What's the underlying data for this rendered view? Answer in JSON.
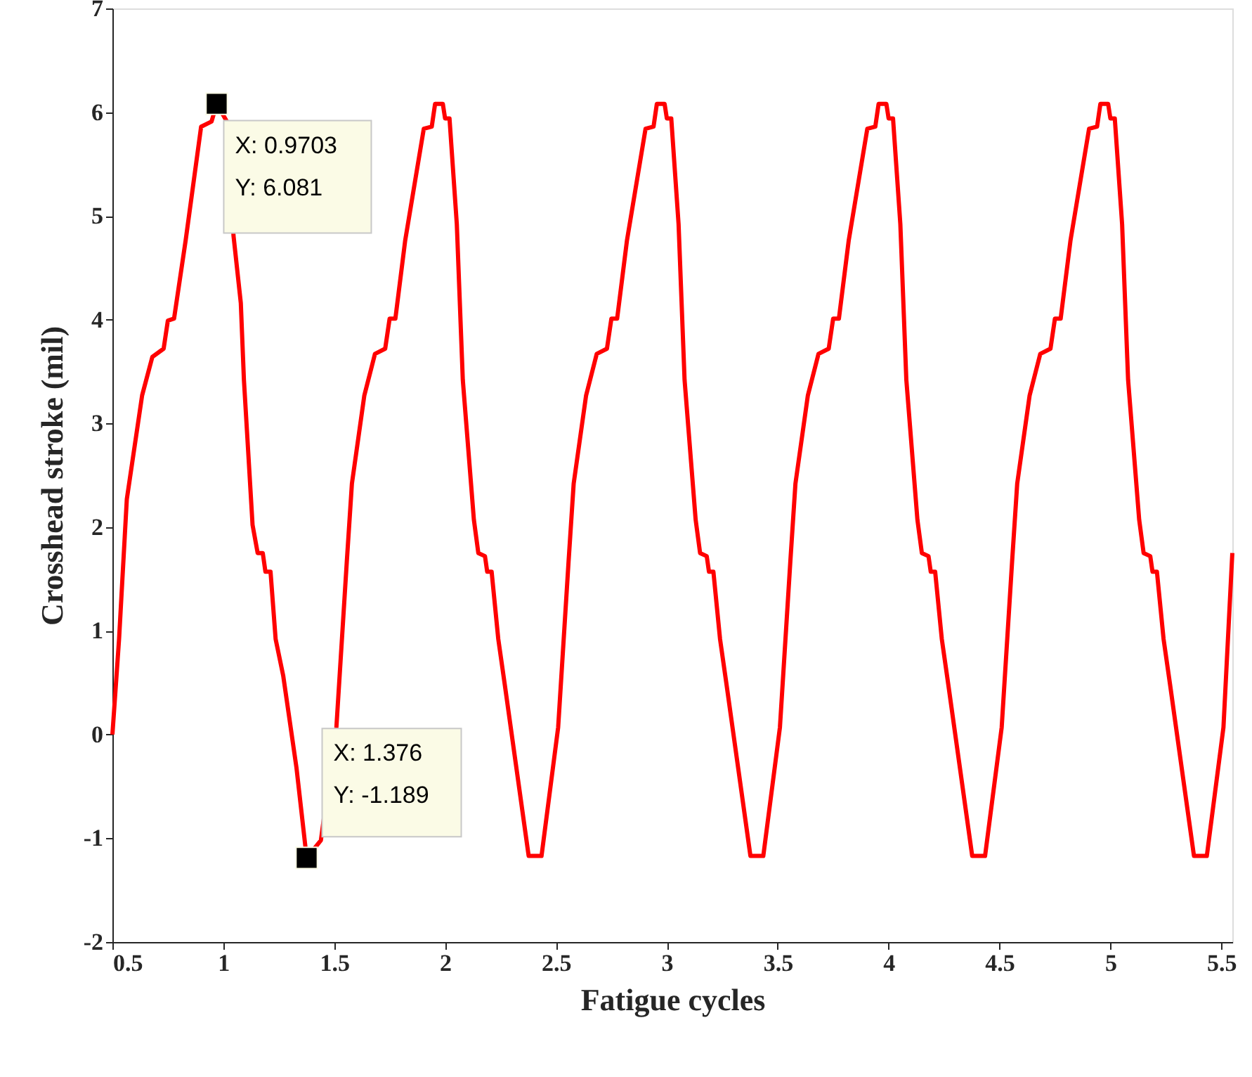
{
  "chart_data": {
    "type": "line",
    "xlabel": "Fatigue cycles",
    "ylabel": "Crosshead stroke (mil)",
    "xlim": [
      0.5,
      5.55
    ],
    "xticks": [
      0.5,
      1,
      1.5,
      2,
      2.5,
      3,
      3.5,
      4,
      4.5,
      5,
      5.5
    ],
    "ylim": [
      -2,
      7
    ],
    "yticks": [
      -2,
      -1,
      0,
      1,
      2,
      3,
      4,
      5,
      6,
      7
    ],
    "grid": false,
    "marker": "none",
    "line_style": "solid",
    "series": [
      {
        "color": "#ff0000",
        "x": [
          0.5,
          0.53,
          0.565,
          0.634,
          0.68,
          0.731,
          0.75,
          0.778,
          0.83,
          0.9,
          0.947,
          0.9703,
          1.016,
          1.046,
          1.079,
          1.093,
          1.132,
          1.155,
          1.178,
          1.19,
          1.213,
          1.236,
          1.27,
          1.33,
          1.376,
          1.44,
          1.51,
          1.557,
          1.58,
          1.636,
          1.684,
          1.73,
          1.75,
          1.776,
          1.82,
          1.904,
          1.94,
          1.955,
          1.99,
          2.0,
          2.02,
          2.053,
          2.08,
          2.13,
          2.15,
          2.18,
          2.19,
          2.21,
          2.24,
          2.27,
          2.377,
          2.435,
          2.51,
          2.557,
          2.58,
          2.636,
          2.684,
          2.73,
          2.75,
          2.776,
          2.82,
          2.904,
          2.94,
          2.955,
          2.99,
          3.0,
          3.02,
          3.053,
          3.08,
          3.13,
          3.15,
          3.18,
          3.19,
          3.21,
          3.24,
          3.27,
          3.377,
          3.435,
          3.51,
          3.557,
          3.58,
          3.636,
          3.684,
          3.73,
          3.75,
          3.776,
          3.82,
          3.904,
          3.94,
          3.955,
          3.99,
          4.0,
          4.02,
          4.053,
          4.08,
          4.13,
          4.15,
          4.18,
          4.19,
          4.21,
          4.24,
          4.27,
          4.377,
          4.435,
          4.51,
          4.557,
          4.58,
          4.636,
          4.684,
          4.73,
          4.75,
          4.776,
          4.82,
          4.904,
          4.94,
          4.955,
          4.99,
          5.0,
          5.02,
          5.053,
          5.08,
          5.13,
          5.15,
          5.18,
          5.19,
          5.21,
          5.24,
          5.27,
          5.377,
          5.435,
          5.51,
          5.55
        ],
        "values": [
          0,
          0.92,
          2.27,
          3.27,
          3.64,
          3.72,
          3.99,
          4.01,
          4.76,
          5.86,
          5.91,
          6.08,
          5.91,
          4.81,
          4.16,
          3.42,
          2.02,
          1.75,
          1.75,
          1.57,
          1.57,
          0.92,
          0.57,
          -0.32,
          -1.19,
          -1.02,
          0.07,
          1.67,
          2.42,
          3.27,
          3.67,
          3.72,
          4.01,
          4.01,
          4.76,
          5.84,
          5.86,
          6.08,
          6.08,
          5.94,
          5.94,
          4.92,
          3.42,
          2.07,
          1.75,
          1.72,
          1.57,
          1.57,
          0.92,
          0.47,
          -1.17,
          -1.17,
          0.07,
          1.67,
          2.42,
          3.27,
          3.67,
          3.72,
          4.01,
          4.01,
          4.76,
          5.84,
          5.86,
          6.08,
          6.08,
          5.94,
          5.94,
          4.92,
          3.42,
          2.07,
          1.75,
          1.72,
          1.57,
          1.57,
          0.92,
          0.47,
          -1.17,
          -1.17,
          0.07,
          1.67,
          2.42,
          3.27,
          3.67,
          3.72,
          4.01,
          4.01,
          4.76,
          5.84,
          5.86,
          6.08,
          6.08,
          5.94,
          5.94,
          4.92,
          3.42,
          2.07,
          1.75,
          1.72,
          1.57,
          1.57,
          0.92,
          0.47,
          -1.17,
          -1.17,
          0.07,
          1.67,
          2.42,
          3.27,
          3.67,
          3.72,
          4.01,
          4.01,
          4.76,
          5.84,
          5.86,
          6.08,
          6.08,
          5.94,
          5.94,
          4.92,
          3.42,
          2.07,
          1.75,
          1.72,
          1.57,
          1.57,
          0.92,
          0.47,
          -1.17,
          -1.17,
          0.07,
          1.75
        ]
      }
    ],
    "annotations": [
      {
        "text": "X: 0.9703\nY: 6.081",
        "x": 0.9703,
        "y": 6.081
      },
      {
        "text": "X: 1.376\nY: -1.189",
        "x": 1.376,
        "y": -1.189
      }
    ]
  }
}
